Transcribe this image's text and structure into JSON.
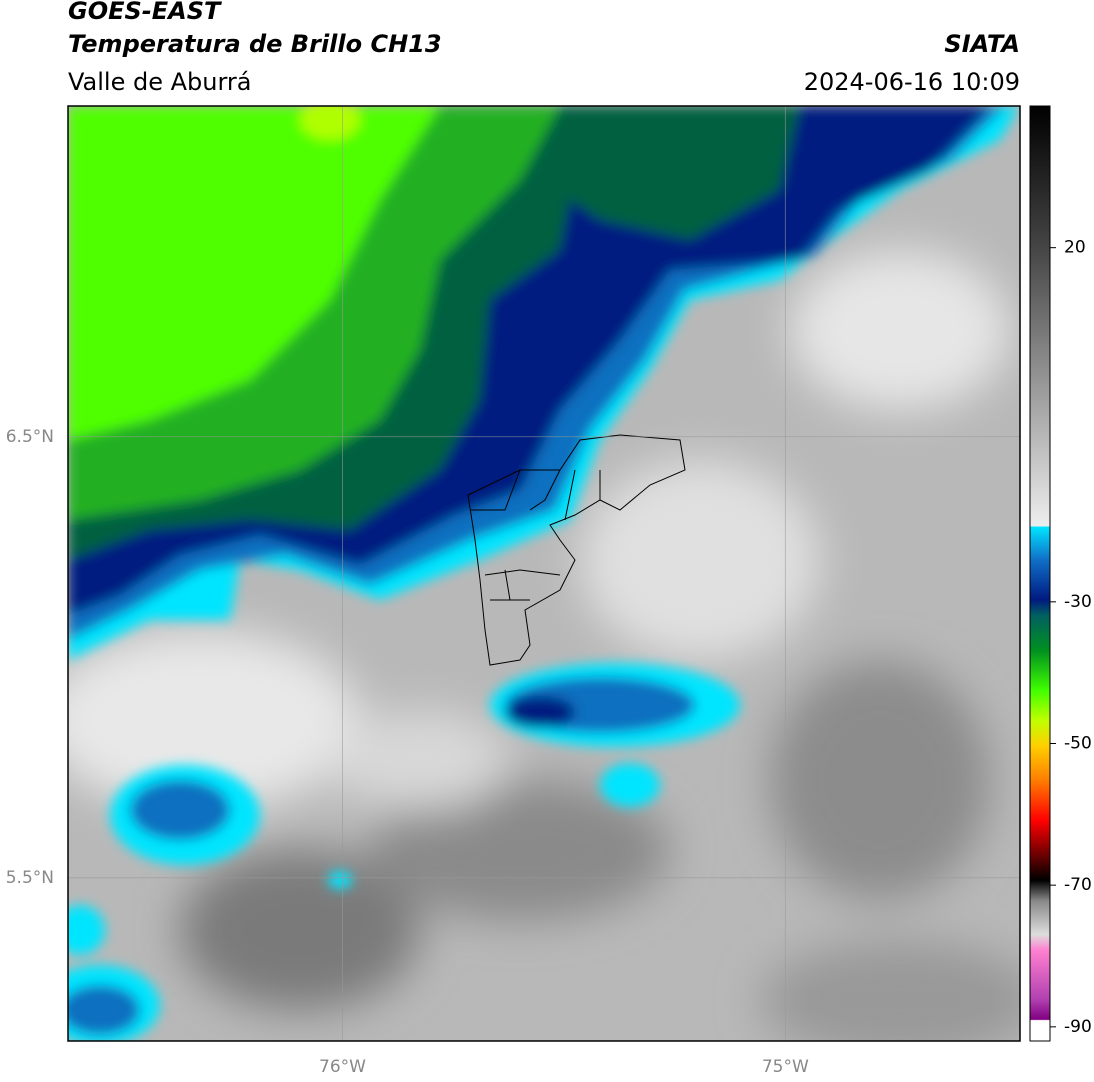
{
  "header": {
    "title": "GOES-EAST",
    "subtitle": "Temperatura de Brillo CH13",
    "region": "Valle de Aburrá",
    "source": "SIATA",
    "datetime": "2024-06-16 10:09"
  },
  "map": {
    "lon_lim": [
      -76.62,
      -74.47
    ],
    "lat_lim": [
      5.13,
      7.25
    ],
    "lon_ticks": [
      {
        "value": -76,
        "label": "76°W"
      },
      {
        "value": -75,
        "label": "75°W"
      }
    ],
    "lat_ticks": [
      {
        "value": 6.5,
        "label": "6.5°N"
      },
      {
        "value": 5.5,
        "label": "5.5°N"
      }
    ]
  },
  "colorbar": {
    "lim": [
      -92,
      40
    ],
    "ticks": [
      20,
      -30,
      -50,
      -70,
      -90
    ]
  }
}
